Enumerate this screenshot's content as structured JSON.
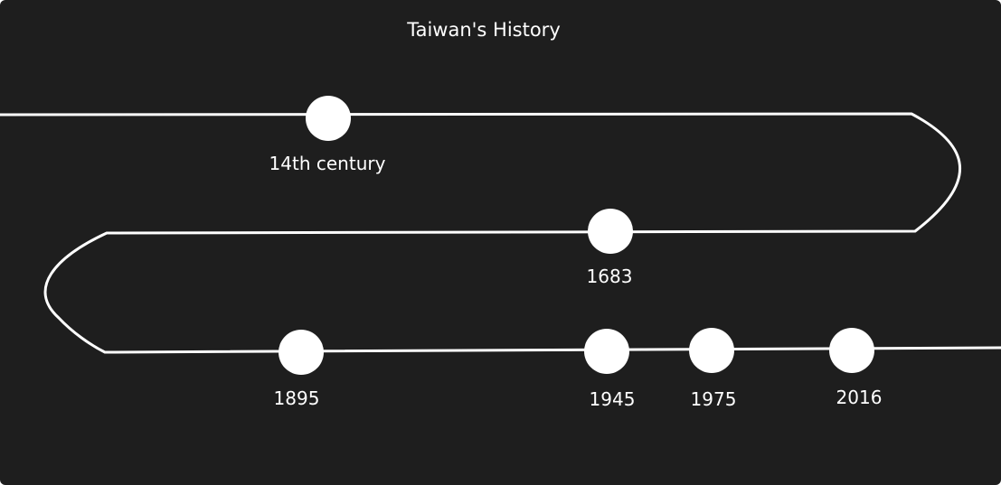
{
  "title": "Taiwan's History",
  "colors": {
    "background": "#1e1e1e",
    "stroke": "#ffffff"
  },
  "events": [
    {
      "id": "14th-century",
      "label": "14th century"
    },
    {
      "id": "1683",
      "label": "1683"
    },
    {
      "id": "1895",
      "label": "1895"
    },
    {
      "id": "1945",
      "label": "1945"
    },
    {
      "id": "1975",
      "label": "1975"
    },
    {
      "id": "2016",
      "label": "2016"
    }
  ]
}
